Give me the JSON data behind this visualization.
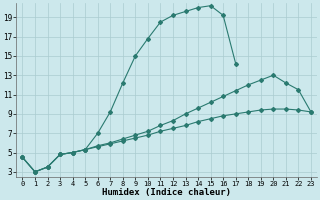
{
  "xlabel": "Humidex (Indice chaleur)",
  "bg_color": "#cce8ec",
  "grid_color": "#aaccd0",
  "line_color": "#2a7a70",
  "xlim": [
    -0.5,
    23.5
  ],
  "ylim": [
    2.5,
    20.5
  ],
  "xticks": [
    0,
    1,
    2,
    3,
    4,
    5,
    6,
    7,
    8,
    9,
    10,
    11,
    12,
    13,
    14,
    15,
    16,
    17,
    18,
    19,
    20,
    21,
    22,
    23
  ],
  "yticks": [
    3,
    5,
    7,
    9,
    11,
    13,
    15,
    17,
    19
  ],
  "curves": [
    {
      "x": [
        0,
        1,
        2,
        3,
        4,
        5,
        6,
        7,
        8,
        9,
        10,
        11,
        12,
        13,
        14,
        15,
        16,
        17
      ],
      "y": [
        4.5,
        3.0,
        3.5,
        4.8,
        5.0,
        5.3,
        7.0,
        9.2,
        12.2,
        15.0,
        16.8,
        18.5,
        19.2,
        19.6,
        20.0,
        20.2,
        19.2,
        14.2
      ]
    },
    {
      "x": [
        0,
        1,
        2,
        3,
        4,
        5,
        6,
        7,
        8,
        9,
        10,
        11,
        12,
        13,
        14,
        15,
        16,
        17,
        18,
        19,
        20,
        21,
        22,
        23
      ],
      "y": [
        4.5,
        3.0,
        3.5,
        4.8,
        5.0,
        5.3,
        5.6,
        5.9,
        6.2,
        6.5,
        6.8,
        7.2,
        7.5,
        7.8,
        8.2,
        8.5,
        8.8,
        9.0,
        9.2,
        9.4,
        9.5,
        9.5,
        9.4,
        9.2
      ]
    },
    {
      "x": [
        0,
        1,
        2,
        3,
        4,
        5,
        6,
        7,
        8,
        9,
        10,
        11,
        12,
        13,
        14,
        15,
        16,
        17,
        18,
        19,
        20,
        21,
        22,
        23
      ],
      "y": [
        4.5,
        3.0,
        3.5,
        4.8,
        5.0,
        5.3,
        5.7,
        6.0,
        6.4,
        6.8,
        7.2,
        7.8,
        8.3,
        9.0,
        9.6,
        10.2,
        10.8,
        11.4,
        12.0,
        12.5,
        13.0,
        12.2,
        11.5,
        9.2
      ]
    }
  ]
}
